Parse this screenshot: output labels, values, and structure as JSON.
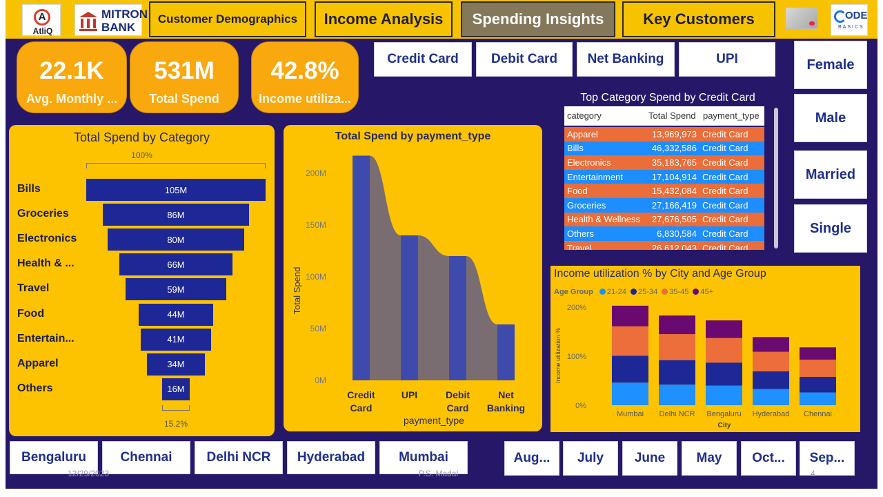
{
  "brand": {
    "atliq": "AtliQ",
    "mitron_line1": "MITRON",
    "mitron_line2": "BANK",
    "codebasics_line1": "ODE",
    "codebasics_line2": "BASICS"
  },
  "nav": [
    {
      "label": "Customer Demographics",
      "active": false
    },
    {
      "label": "Income Analysis",
      "active": false
    },
    {
      "label": "Spending Insights",
      "active": true
    },
    {
      "label": "Key Customers",
      "active": false
    }
  ],
  "kpis": [
    {
      "value": "22.1K",
      "label": "Avg. Monthly ..."
    },
    {
      "value": "531M",
      "label": "Total Spend"
    },
    {
      "value": "42.8%",
      "label": "Income utiliza..."
    }
  ],
  "payment_slicer": [
    "Credit Card",
    "Debit Card",
    "Net Banking",
    "UPI"
  ],
  "gender_slicer": [
    "Female",
    "Male",
    "Married",
    "Single"
  ],
  "city_slicer": [
    "Bengaluru",
    "Chennai",
    "Delhi NCR",
    "Hyderabad",
    "Mumbai"
  ],
  "month_slicer": [
    "Aug...",
    "July",
    "June",
    "May",
    "Oct...",
    "Sep..."
  ],
  "funnel": {
    "title": "Total Spend by Category",
    "top_pct": "100%",
    "bottom_pct": "15.2%",
    "categories": [
      "Bills",
      "Groceries",
      "Electronics",
      "Health & ...",
      "Travel",
      "Food",
      "Entertain...",
      "Apparel",
      "Others"
    ],
    "values": [
      105,
      86,
      80,
      66,
      59,
      44,
      41,
      34,
      16
    ],
    "labels": [
      "105M",
      "86M",
      "80M",
      "66M",
      "59M",
      "44M",
      "41M",
      "34M",
      "16M"
    ]
  },
  "ribbon": {
    "title": "Total Spend by payment_type",
    "xlabel": "payment_type",
    "ylabel": "Total Spend",
    "yticks": [
      "0M",
      "50M",
      "100M",
      "150M",
      "200M"
    ],
    "categories": [
      "Credit Card",
      "UPI",
      "Debit Card",
      "Net Banking"
    ],
    "values": [
      217,
      140,
      120,
      54
    ]
  },
  "category_table": {
    "title": "Top Category Spend by Credit Card",
    "headers": [
      "category",
      "Total Spend",
      "payment_type"
    ],
    "rows": [
      [
        "Apparel",
        "13,969,973",
        "Credit Card"
      ],
      [
        "Bills",
        "46,332,586",
        "Credit Card"
      ],
      [
        "Electronics",
        "35,183,765",
        "Credit Card"
      ],
      [
        "Entertainment",
        "17,104,914",
        "Credit Card"
      ],
      [
        "Food",
        "15,432,084",
        "Credit Card"
      ],
      [
        "Groceries",
        "27,166,419",
        "Credit Card"
      ],
      [
        "Health & Wellness",
        "27,676,505",
        "Credit Card"
      ],
      [
        "Others",
        "6,830,584",
        "Credit Card"
      ],
      [
        "Travel",
        "26,612,043",
        "Credit Card"
      ]
    ]
  },
  "stacked": {
    "title": "Income utilization % by City and Age Group",
    "legend_title": "Age Group",
    "series": [
      {
        "name": "21-24",
        "color": "#1e90ff",
        "values": [
          46,
          42,
          40,
          33,
          26
        ]
      },
      {
        "name": "25-34",
        "color": "#1d2896",
        "values": [
          55,
          50,
          47,
          36,
          32
        ]
      },
      {
        "name": "35-45",
        "color": "#ec6e3a",
        "values": [
          60,
          53,
          50,
          40,
          35
        ]
      },
      {
        "name": "45+",
        "color": "#6a0a70",
        "values": [
          42,
          38,
          36,
          30,
          25
        ]
      }
    ],
    "cities": [
      "Mumbai",
      "Delhi NCR",
      "Bengaluru",
      "Hyderabad",
      "Chennai"
    ],
    "xlabel": "City",
    "ylabel": "Income utilization %",
    "yticks": [
      "0%",
      "100%",
      "200%"
    ]
  },
  "footer": {
    "date": "12/29/2023",
    "author": "P.S. Madal",
    "page": "4"
  },
  "chart_data": [
    {
      "type": "bar",
      "title": "Total Spend by Category",
      "categories": [
        "Bills",
        "Groceries",
        "Electronics",
        "Health & ...",
        "Travel",
        "Food",
        "Entertain...",
        "Apparel",
        "Others"
      ],
      "values": [
        105,
        86,
        80,
        66,
        59,
        44,
        41,
        34,
        16
      ],
      "unit": "M"
    },
    {
      "type": "bar",
      "title": "Total Spend by payment_type",
      "categories": [
        "Credit Card",
        "UPI",
        "Debit Card",
        "Net Banking"
      ],
      "values": [
        217,
        140,
        120,
        54
      ],
      "xlabel": "payment_type",
      "ylabel": "Total Spend",
      "ylim": [
        0,
        220
      ]
    },
    {
      "type": "bar",
      "title": "Income utilization % by City and Age Group",
      "categories": [
        "Mumbai",
        "Delhi NCR",
        "Bengaluru",
        "Hyderabad",
        "Chennai"
      ],
      "series": [
        {
          "name": "21-24",
          "values": [
            46,
            42,
            40,
            33,
            26
          ]
        },
        {
          "name": "25-34",
          "values": [
            55,
            50,
            47,
            36,
            32
          ]
        },
        {
          "name": "35-45",
          "values": [
            60,
            53,
            50,
            40,
            35
          ]
        },
        {
          "name": "45+",
          "values": [
            42,
            38,
            36,
            30,
            25
          ]
        }
      ],
      "xlabel": "City",
      "ylabel": "Income utilization %",
      "ylim": [
        0,
        200
      ]
    }
  ]
}
